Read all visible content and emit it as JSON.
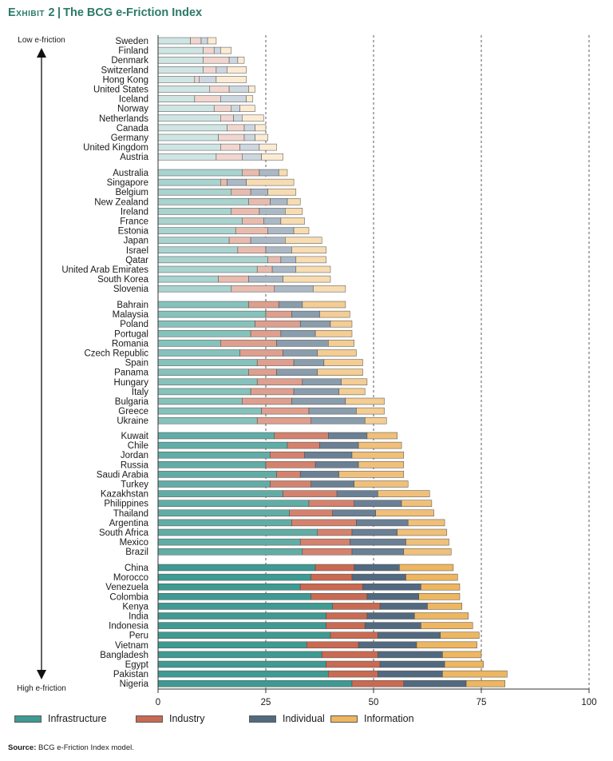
{
  "header": {
    "exhibit": "Exhibit 2",
    "title": "The BCG e-Friction Index"
  },
  "source": {
    "label": "Source:",
    "text": "BCG e-Friction Index model."
  },
  "colors": {
    "title": "#2b7a68",
    "groups": [
      {
        "Infrastructure": "#cfe5e3",
        "Industry": "#f0d6cf",
        "Individual": "#cdd7df",
        "Information": "#fbebd3"
      },
      {
        "Infrastructure": "#a9d3cf",
        "Industry": "#e7bcaf",
        "Individual": "#aab9c5",
        "Information": "#f7dcb2"
      },
      {
        "Infrastructure": "#86c2bc",
        "Industry": "#de9f8e",
        "Individual": "#8a9dad",
        "Information": "#f3cd93"
      },
      {
        "Infrastructure": "#61ada6",
        "Industry": "#d4826e",
        "Individual": "#6b8094",
        "Information": "#f0c07a"
      },
      {
        "Infrastructure": "#3e9a92",
        "Industry": "#c96a52",
        "Individual": "#526a80",
        "Information": "#edb660"
      }
    ]
  },
  "chart_data": {
    "type": "bar",
    "orientation": "horizontal",
    "stacked": true,
    "xlim": [
      0,
      100
    ],
    "x_ticks": [
      0,
      25,
      50,
      75,
      100
    ],
    "gridlines": [
      25,
      50,
      75,
      100
    ],
    "grid_style": "dashed vertical",
    "y_top_label": "Low e-friction",
    "y_bottom_label": "High e-friction",
    "series_names": [
      "Infrastructure",
      "Industry",
      "Individual",
      "Information"
    ],
    "legend": [
      "Infrastructure",
      "Industry",
      "Individual",
      "Information"
    ],
    "groups": [
      {
        "countries": [
          {
            "name": "Sweden",
            "values": [
              7.5,
              2.5,
              1.5,
              2.0
            ]
          },
          {
            "name": "Finland",
            "values": [
              10.5,
              2.5,
              1.5,
              2.5
            ]
          },
          {
            "name": "Denmark",
            "values": [
              10.5,
              6.0,
              2.0,
              1.5
            ]
          },
          {
            "name": "Switzerland",
            "values": [
              10.5,
              3.0,
              2.5,
              4.5
            ]
          },
          {
            "name": "Hong Kong",
            "values": [
              8.5,
              1.0,
              4.0,
              7.0
            ]
          },
          {
            "name": "United States",
            "values": [
              12.0,
              4.5,
              4.5,
              1.5
            ]
          },
          {
            "name": "Iceland",
            "values": [
              8.5,
              6.0,
              6.0,
              1.5
            ]
          },
          {
            "name": "Norway",
            "values": [
              13.0,
              4.0,
              2.0,
              3.5
            ]
          },
          {
            "name": "Netherlands",
            "values": [
              14.5,
              3.0,
              2.0,
              5.0
            ]
          },
          {
            "name": "Canada",
            "values": [
              16.0,
              4.0,
              2.5,
              2.5
            ]
          },
          {
            "name": "Germany",
            "values": [
              14.0,
              6.0,
              2.5,
              3.0
            ]
          },
          {
            "name": "United Kingdom",
            "values": [
              14.5,
              4.5,
              4.5,
              4.0
            ]
          },
          {
            "name": "Austria",
            "values": [
              13.5,
              6.0,
              4.5,
              5.0
            ]
          }
        ]
      },
      {
        "countries": [
          {
            "name": "Australia",
            "values": [
              19.5,
              4.0,
              4.5,
              2.0
            ]
          },
          {
            "name": "Singapore",
            "values": [
              14.5,
              1.5,
              4.5,
              11.0
            ]
          },
          {
            "name": "Belgium",
            "values": [
              17.0,
              4.5,
              4.0,
              6.5
            ]
          },
          {
            "name": "New Zealand",
            "values": [
              21.0,
              5.0,
              4.0,
              3.0
            ]
          },
          {
            "name": "Ireland",
            "values": [
              17.0,
              6.5,
              6.0,
              4.0
            ]
          },
          {
            "name": "France",
            "values": [
              19.5,
              5.0,
              4.0,
              5.5
            ]
          },
          {
            "name": "Estonia",
            "values": [
              18.0,
              7.5,
              6.0,
              3.5
            ]
          },
          {
            "name": "Japan",
            "values": [
              16.5,
              5.0,
              8.0,
              8.5
            ]
          },
          {
            "name": "Israel",
            "values": [
              18.5,
              6.5,
              6.0,
              8.0
            ]
          },
          {
            "name": "Qatar",
            "values": [
              25.5,
              3.0,
              3.5,
              7.0
            ]
          },
          {
            "name": "United Arab Emirates",
            "values": [
              23.0,
              3.5,
              5.5,
              8.0
            ]
          },
          {
            "name": "South Korea",
            "values": [
              14.0,
              7.0,
              8.0,
              11.0
            ]
          },
          {
            "name": "Slovenia",
            "values": [
              17.0,
              10.0,
              9.0,
              7.5
            ]
          }
        ]
      },
      {
        "countries": [
          {
            "name": "Bahrain",
            "values": [
              21.0,
              7.0,
              5.5,
              10.0
            ]
          },
          {
            "name": "Malaysia",
            "values": [
              25.0,
              6.0,
              6.5,
              7.0
            ]
          },
          {
            "name": "Poland",
            "values": [
              22.5,
              10.5,
              7.0,
              5.0
            ]
          },
          {
            "name": "Portugal",
            "values": [
              21.5,
              7.0,
              8.0,
              8.5
            ]
          },
          {
            "name": "Romania",
            "values": [
              14.5,
              13.0,
              12.0,
              6.0
            ]
          },
          {
            "name": "Czech Republic",
            "values": [
              19.0,
              10.0,
              8.0,
              9.0
            ]
          },
          {
            "name": "Spain",
            "values": [
              23.0,
              8.5,
              7.0,
              9.0
            ]
          },
          {
            "name": "Panama",
            "values": [
              21.0,
              6.5,
              9.5,
              10.5
            ]
          },
          {
            "name": "Hungary",
            "values": [
              23.0,
              10.5,
              9.0,
              6.0
            ]
          },
          {
            "name": "Italy",
            "values": [
              21.5,
              10.0,
              10.5,
              6.0
            ]
          },
          {
            "name": "Bulgaria",
            "values": [
              19.5,
              11.5,
              12.5,
              9.0
            ]
          },
          {
            "name": "Greece",
            "values": [
              24.0,
              11.0,
              11.0,
              6.5
            ]
          },
          {
            "name": "Ukraine",
            "values": [
              23.0,
              12.5,
              12.5,
              5.0
            ]
          }
        ]
      },
      {
        "countries": [
          {
            "name": "Kuwait",
            "values": [
              27.0,
              12.5,
              9.0,
              7.0
            ]
          },
          {
            "name": "Chile",
            "values": [
              30.0,
              7.5,
              9.0,
              10.0
            ]
          },
          {
            "name": "Jordan",
            "values": [
              26.0,
              8.0,
              11.0,
              12.0
            ]
          },
          {
            "name": "Russia",
            "values": [
              25.0,
              11.5,
              10.0,
              10.5
            ]
          },
          {
            "name": "Saudi Arabia",
            "values": [
              27.5,
              5.5,
              9.0,
              15.0
            ]
          },
          {
            "name": "Turkey",
            "values": [
              26.0,
              9.5,
              10.0,
              12.5
            ]
          },
          {
            "name": "Kazakhstan",
            "values": [
              29.0,
              12.5,
              9.5,
              12.0
            ]
          },
          {
            "name": "Philippines",
            "values": [
              35.0,
              10.5,
              11.0,
              7.0
            ]
          },
          {
            "name": "Thailand",
            "values": [
              30.5,
              10.0,
              10.0,
              13.5
            ]
          },
          {
            "name": "Argentina",
            "values": [
              31.0,
              15.0,
              12.0,
              8.5
            ]
          },
          {
            "name": "South Africa",
            "values": [
              37.0,
              8.0,
              10.5,
              11.5
            ]
          },
          {
            "name": "Mexico",
            "values": [
              33.0,
              11.5,
              13.0,
              10.0
            ]
          },
          {
            "name": "Brazil",
            "values": [
              33.5,
              11.5,
              12.0,
              11.0
            ]
          }
        ]
      },
      {
        "countries": [
          {
            "name": "China",
            "values": [
              36.5,
              9.0,
              10.5,
              12.5
            ]
          },
          {
            "name": "Morocco",
            "values": [
              35.5,
              9.5,
              12.5,
              12.0
            ]
          },
          {
            "name": "Venezuela",
            "values": [
              33.0,
              14.5,
              13.5,
              9.0
            ]
          },
          {
            "name": "Colombia",
            "values": [
              35.5,
              13.0,
              12.0,
              9.5
            ]
          },
          {
            "name": "Kenya",
            "values": [
              40.5,
              11.0,
              11.0,
              8.0
            ]
          },
          {
            "name": "India",
            "values": [
              39.0,
              9.5,
              11.0,
              12.5
            ]
          },
          {
            "name": "Indonesia",
            "values": [
              39.0,
              9.0,
              13.0,
              12.0
            ]
          },
          {
            "name": "Peru",
            "values": [
              40.0,
              11.0,
              14.5,
              9.0
            ]
          },
          {
            "name": "Vietnam",
            "values": [
              34.5,
              12.0,
              13.5,
              14.0
            ]
          },
          {
            "name": "Bangladesh",
            "values": [
              38.0,
              13.0,
              15.0,
              9.0
            ]
          },
          {
            "name": "Egypt",
            "values": [
              39.0,
              12.5,
              15.0,
              9.0
            ]
          },
          {
            "name": "Pakistan",
            "values": [
              39.5,
              11.5,
              15.0,
              15.0
            ]
          },
          {
            "name": "Nigeria",
            "values": [
              45.0,
              12.0,
              14.5,
              9.0
            ]
          }
        ]
      }
    ]
  }
}
